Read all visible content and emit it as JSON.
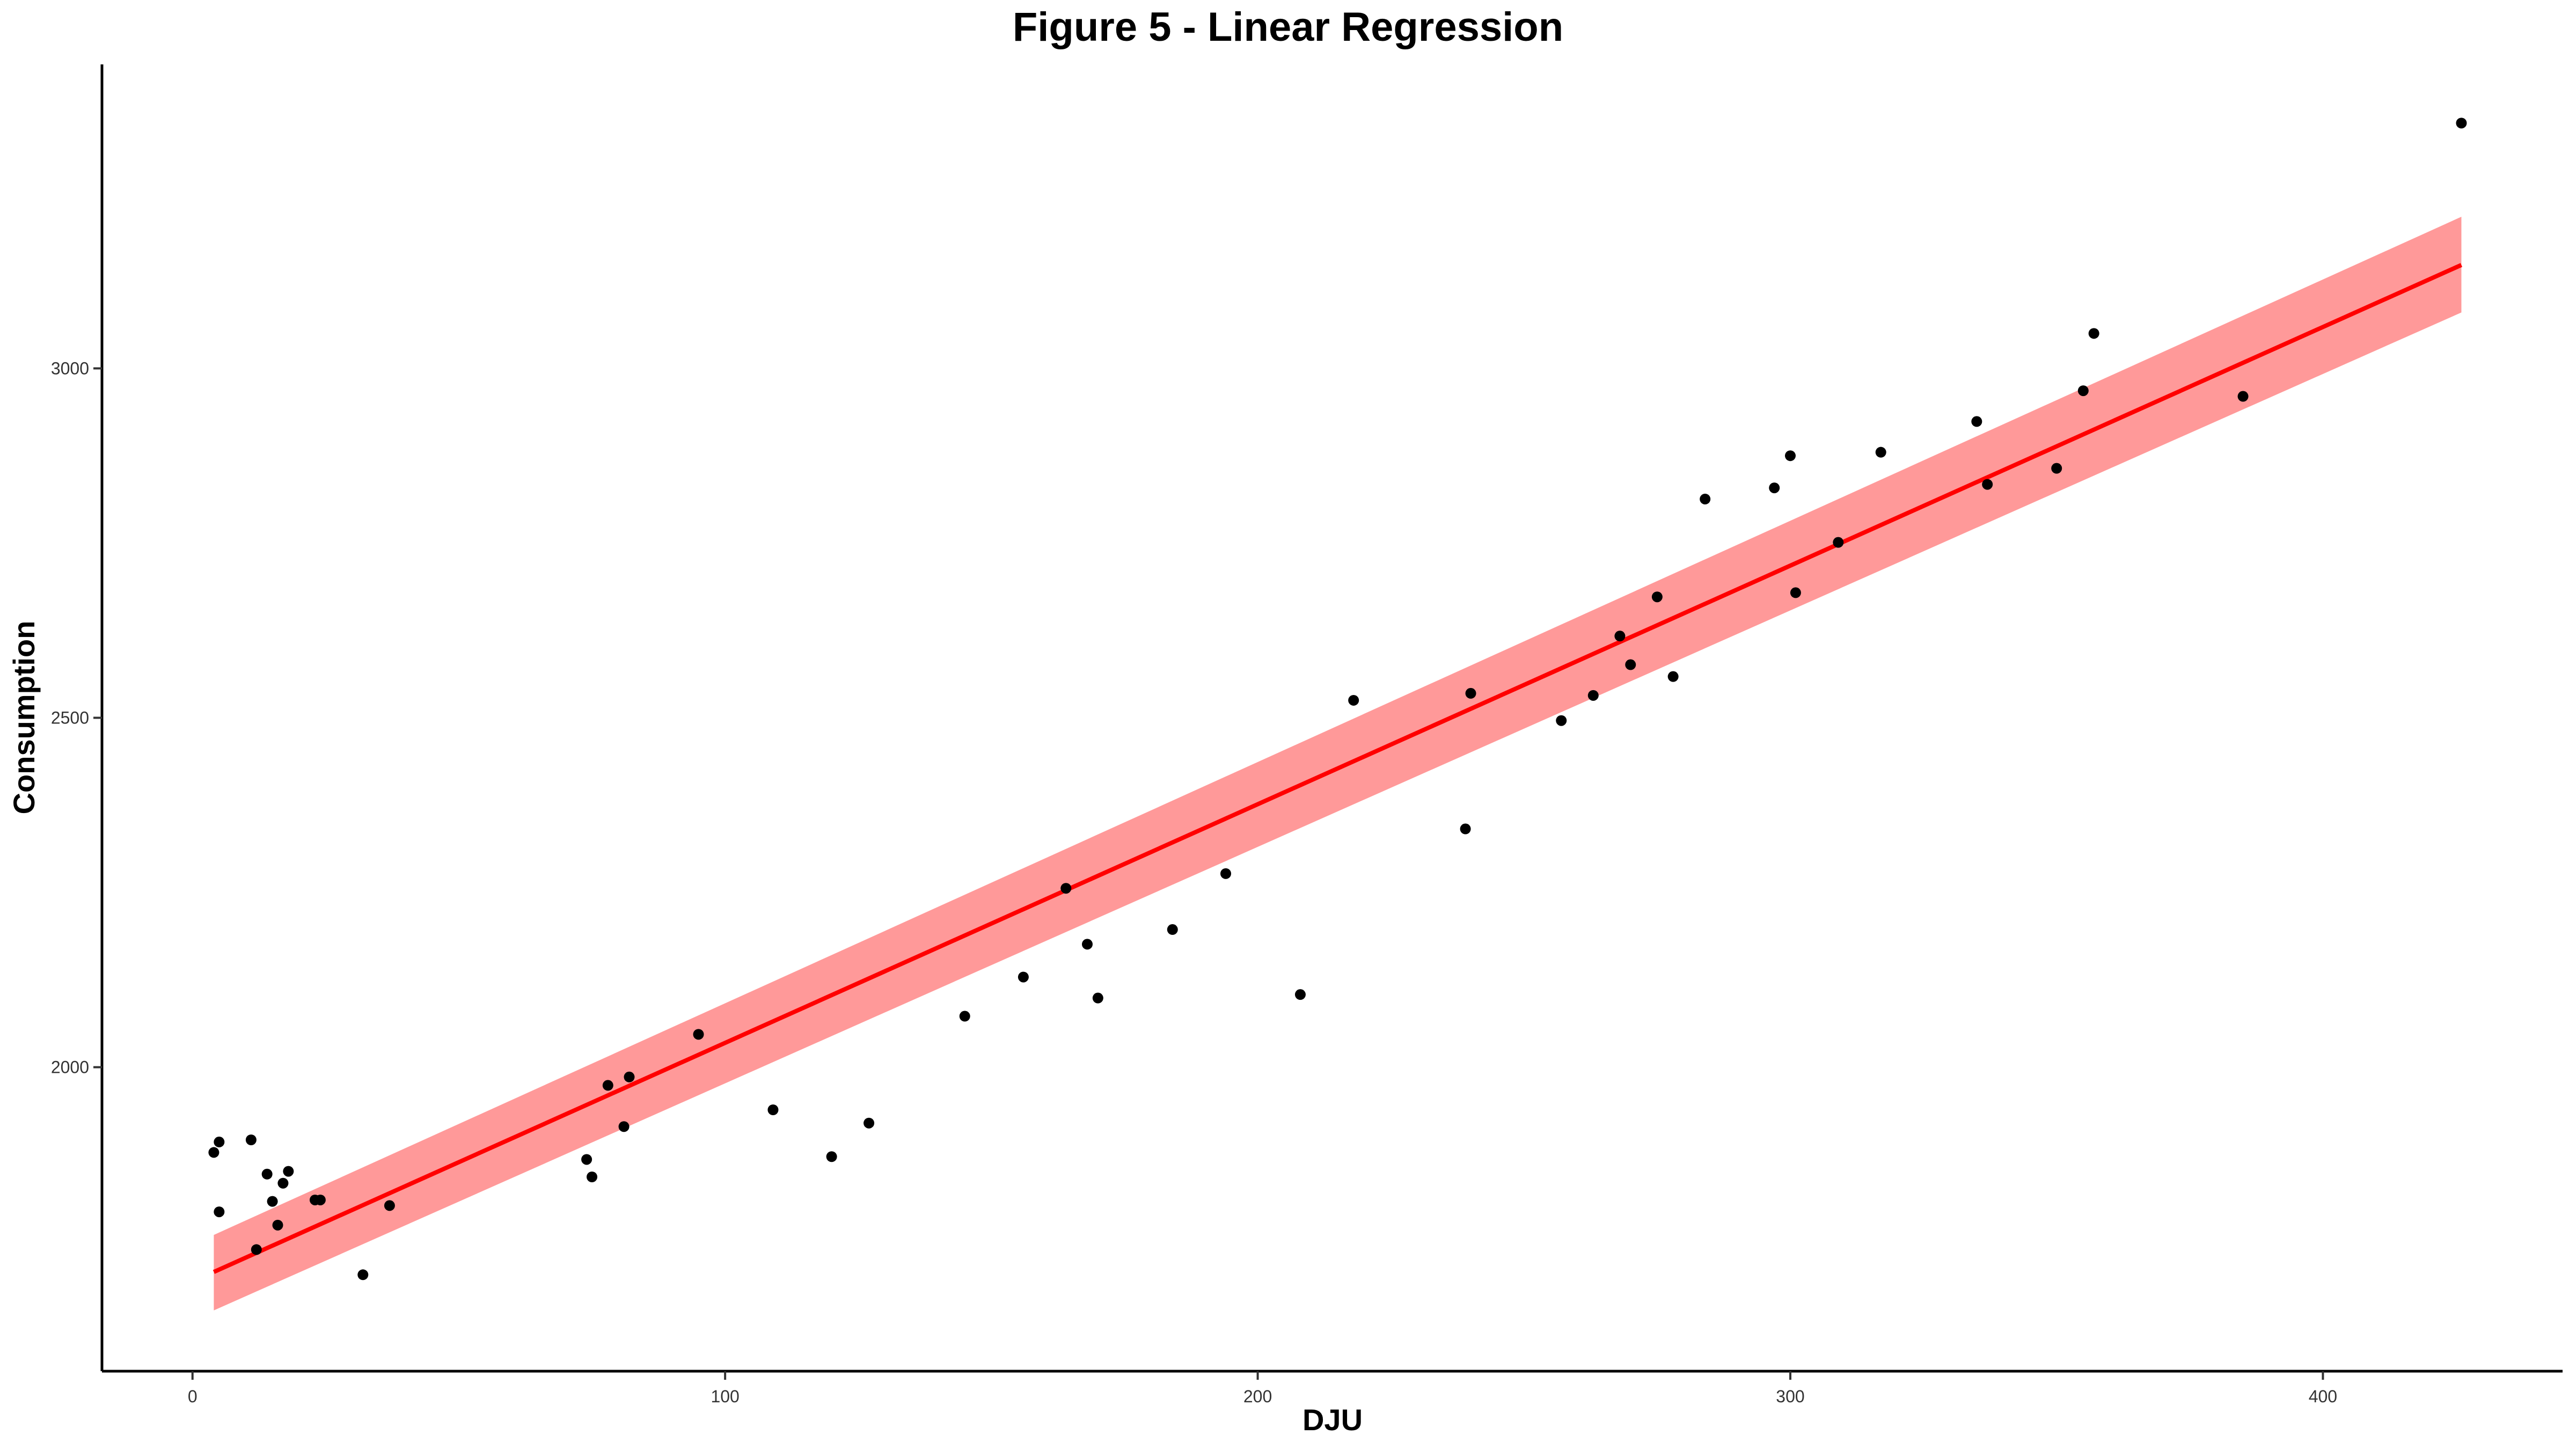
{
  "chart_data": {
    "type": "scatter",
    "title": "Figure 5 - Linear Regression",
    "xlabel": "DJU",
    "ylabel": "Consumption",
    "xlim": [
      -17,
      445
    ],
    "ylim": [
      1565,
      3435
    ],
    "x_ticks": [
      0,
      100,
      200,
      300,
      400
    ],
    "y_ticks": [
      2000,
      2500,
      3000
    ],
    "grid": false,
    "legend": "none",
    "colors": {
      "points": "#000000",
      "line": "#ff0000",
      "band": "#ff9999"
    },
    "points": [
      [
        4,
        1878
      ],
      [
        5,
        1893
      ],
      [
        5,
        1793
      ],
      [
        11,
        1896
      ],
      [
        12,
        1739
      ],
      [
        14,
        1847
      ],
      [
        15,
        1808
      ],
      [
        16,
        1774
      ],
      [
        17,
        1834
      ],
      [
        18,
        1851
      ],
      [
        23,
        1810
      ],
      [
        24,
        1810
      ],
      [
        32,
        1703
      ],
      [
        37,
        1802
      ],
      [
        74,
        1868
      ],
      [
        75,
        1843
      ],
      [
        78,
        1974
      ],
      [
        81,
        1915
      ],
      [
        82,
        1986
      ],
      [
        95,
        2047
      ],
      [
        109,
        1939
      ],
      [
        120,
        1872
      ],
      [
        127,
        1920
      ],
      [
        145,
        2073
      ],
      [
        156,
        2129
      ],
      [
        164,
        2256
      ],
      [
        168,
        2176
      ],
      [
        170,
        2099
      ],
      [
        184,
        2197
      ],
      [
        194,
        2277
      ],
      [
        208,
        2104
      ],
      [
        218,
        2525
      ],
      [
        239,
        2341
      ],
      [
        240,
        2535
      ],
      [
        257,
        2496
      ],
      [
        263,
        2532
      ],
      [
        268,
        2617
      ],
      [
        270,
        2576
      ],
      [
        275,
        2673
      ],
      [
        278,
        2559
      ],
      [
        284,
        2813
      ],
      [
        297,
        2829
      ],
      [
        300,
        2875
      ],
      [
        301,
        2679
      ],
      [
        309,
        2751
      ],
      [
        317,
        2880
      ],
      [
        335,
        2924
      ],
      [
        337,
        2834
      ],
      [
        350,
        2857
      ],
      [
        355,
        2968
      ],
      [
        357,
        3050
      ],
      [
        385,
        2960
      ],
      [
        426,
        3351
      ]
    ],
    "regression": {
      "x": [
        4,
        426
      ],
      "fit": [
        1707,
        3148
      ],
      "lower": [
        1652,
        3080
      ],
      "upper": [
        1760,
        3217
      ]
    }
  }
}
